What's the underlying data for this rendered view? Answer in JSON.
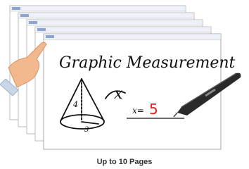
{
  "illustration": {
    "title": "Graphic Measurement",
    "variable": "x",
    "height_label": "4",
    "radius_label": "3",
    "equation": "x=",
    "answer": "5",
    "caption": "Up to 10 Pages"
  }
}
